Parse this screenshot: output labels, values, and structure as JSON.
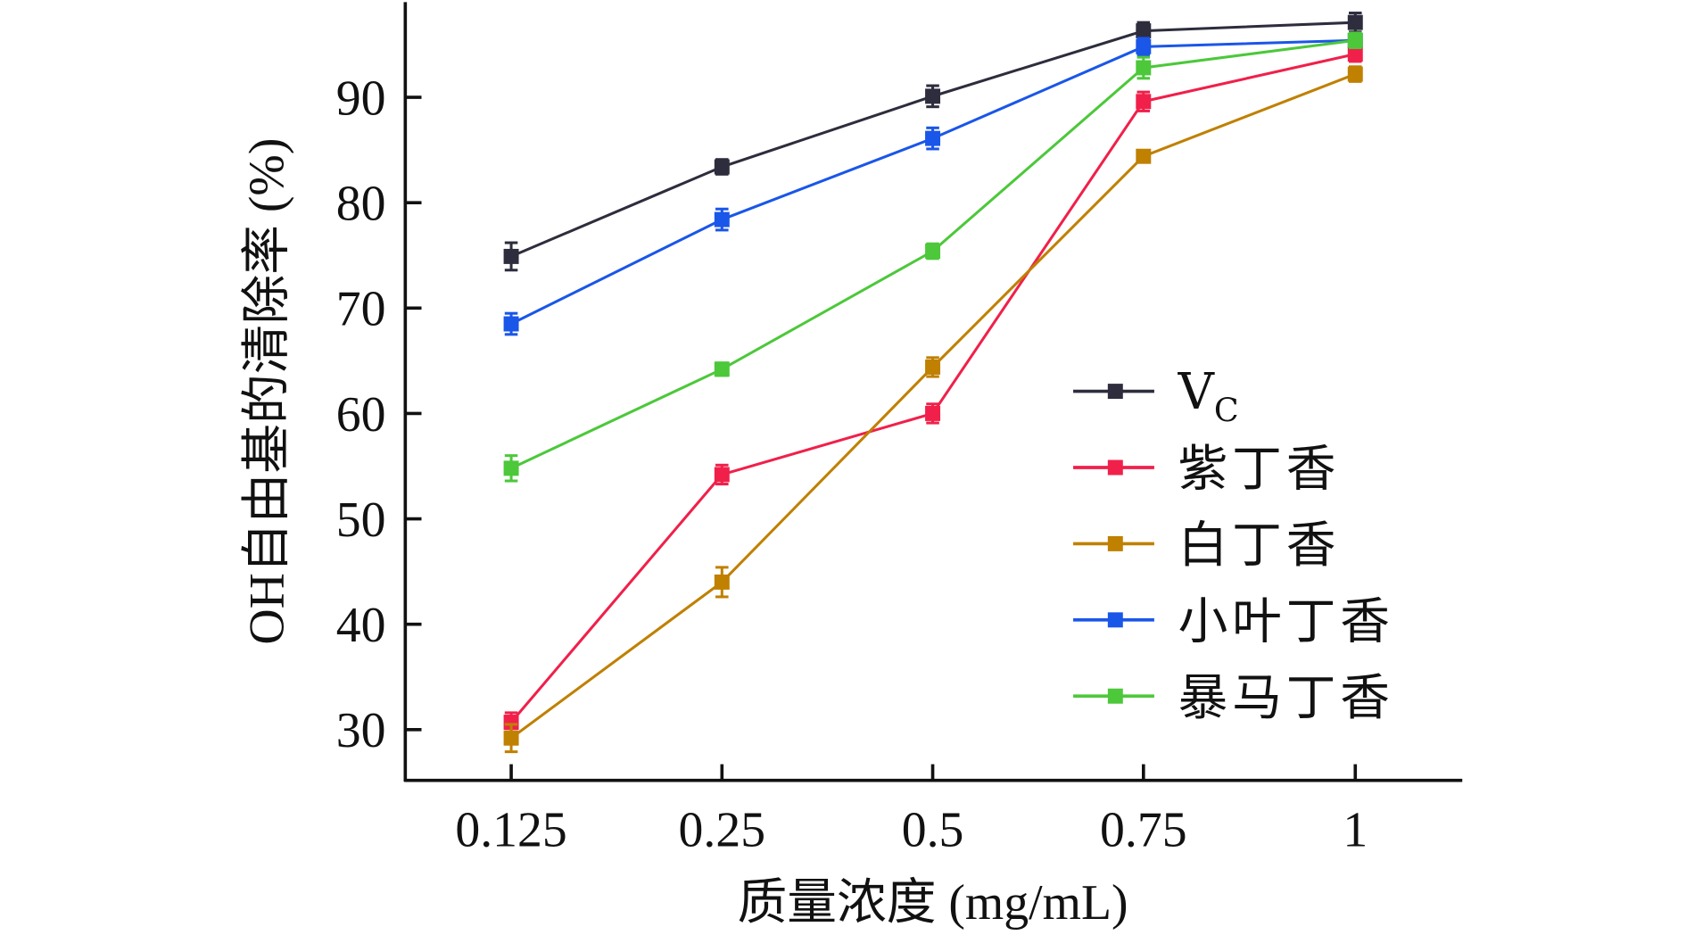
{
  "chart_data": {
    "type": "line",
    "title": "",
    "xlabel": "质量浓度 (mg/mL)",
    "ylabel": "OH自由基的清除率 (%)",
    "categories": [
      "0.125",
      "0.25",
      "0.5",
      "0.75",
      "1"
    ],
    "y_ticks": [
      30,
      40,
      50,
      60,
      70,
      80,
      90
    ],
    "ylim": [
      22,
      99
    ],
    "grid": false,
    "legend_position": "bottom-right",
    "markers": "square",
    "error_bars": true,
    "series": [
      {
        "name": "Vc",
        "name_main": "V",
        "name_sub": "C",
        "color": "#2d2d3d",
        "values": [
          74.9,
          83.4,
          90.1,
          96.3,
          97.1
        ],
        "errors": [
          1.3,
          0.7,
          1.0,
          0.8,
          0.9
        ]
      },
      {
        "name": "紫丁香",
        "color": "#f0204a",
        "values": [
          30.7,
          54.2,
          60.0,
          89.6,
          94.1
        ],
        "errors": [
          0.9,
          0.9,
          0.9,
          0.9,
          0.7
        ]
      },
      {
        "name": "白丁香",
        "color": "#c08000",
        "values": [
          29.2,
          44.0,
          64.4,
          84.4,
          92.2
        ],
        "errors": [
          1.3,
          1.4,
          0.9,
          0.5,
          0.7
        ]
      },
      {
        "name": "小叶丁香",
        "color": "#1a56e8",
        "values": [
          68.5,
          78.4,
          86.1,
          94.8,
          95.4
        ],
        "errors": [
          1.0,
          1.0,
          1.0,
          0.8,
          0.6
        ]
      },
      {
        "name": "暴马丁香",
        "color": "#4cc83a",
        "values": [
          54.8,
          64.2,
          75.4,
          92.8,
          95.4
        ],
        "errors": [
          1.2,
          0.6,
          0.7,
          1.0,
          0.7
        ]
      }
    ]
  }
}
